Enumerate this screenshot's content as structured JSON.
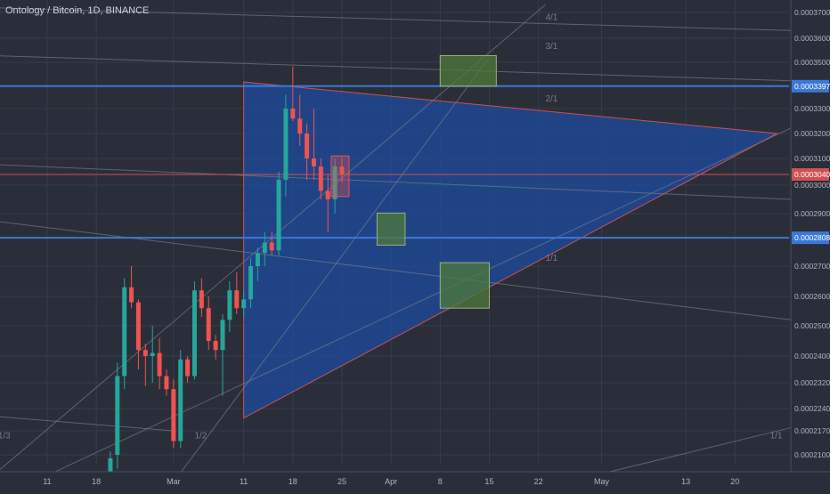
{
  "header": {
    "symbol_title": "Ontology / Bitcoin, 1D, BINANCE"
  },
  "colors": {
    "background": "#2a2e39",
    "grid": "#363c4e",
    "up": "#26a69a",
    "down": "#ef5350",
    "triangle_fill": "#1e4ba0",
    "support_line": "#3a78d8",
    "price_line": "#d05050",
    "fib_line": "#787b86",
    "target_box": "#4f7a3a",
    "axis_text": "#b2b5be"
  },
  "chart_data": {
    "type": "candlestick",
    "title": "Ontology / Bitcoin, 1D, BINANCE",
    "ylim": [
      0.0002055,
      0.0003775
    ],
    "y_ticks": [
      "0.0003700",
      "0.0003600",
      "0.0003500",
      "0.0003300",
      "0.0003200",
      "0.0003100",
      "0.0003000",
      "0.0002900",
      "0.0002700",
      "0.0002600",
      "0.0002500",
      "0.0002400",
      "0.0002320",
      "0.0002240",
      "0.0002170",
      "0.0002100"
    ],
    "x_ticks": [
      "11",
      "18",
      "Mar",
      "11",
      "18",
      "25",
      "Apr",
      "8",
      "15",
      "22",
      "May",
      "13",
      "20"
    ],
    "x_tick_dates": [
      "2018-02-11",
      "2018-02-18",
      "2018-03-01",
      "2018-03-11",
      "2018-03-18",
      "2018-03-25",
      "2018-04-01",
      "2018-04-08",
      "2018-04-15",
      "2018-04-22",
      "2018-05-01",
      "2018-05-13",
      "2018-05-20"
    ],
    "price_labels": [
      {
        "text": "0.0003397",
        "value": 0.0003397,
        "color": "#3a78d8"
      },
      {
        "text": "0.0003040",
        "value": 0.000304,
        "color": "#d05050"
      },
      {
        "text": "0.0002808",
        "value": 0.0002808,
        "color": "#3a78d8"
      }
    ],
    "horizontal_lines": [
      {
        "name": "resistance",
        "value": 0.0003397,
        "color": "#3a78d8"
      },
      {
        "name": "support",
        "value": 0.0002808,
        "color": "#3a78d8"
      },
      {
        "name": "last-price",
        "value": 0.000304,
        "color": "#d05050"
      }
    ],
    "triangle": {
      "vertices": [
        {
          "date": "2018-03-11",
          "price": 0.0003415
        },
        {
          "date": "2018-03-11",
          "price": 0.000221
        },
        {
          "date": "2018-05-26",
          "price": 0.00032
        }
      ]
    },
    "target_boxes": [
      {
        "name": "upper-target",
        "date_from": "2018-04-08",
        "date_to": "2018-04-16",
        "price_from": 0.0003397,
        "price_to": 0.0003528
      },
      {
        "name": "mid-target",
        "date_from": "2018-03-30",
        "date_to": "2018-04-03",
        "price_from": 0.000278,
        "price_to": 0.0002902
      },
      {
        "name": "lower-target",
        "date_from": "2018-04-08",
        "date_to": "2018-04-15",
        "price_from": 0.000256,
        "price_to": 0.0002713
      }
    ],
    "fan_lines": [
      {
        "label": "4/1",
        "from": {
          "date": "2018-03-01",
          "price": 0.000202
        },
        "to": {
          "date": "2018-04-15",
          "price": 0.000352
        }
      },
      {
        "label": "",
        "from": {
          "date": "2018-02-01",
          "price": 0.0002
        },
        "to": {
          "date": "2018-04-23",
          "price": 0.000373
        }
      },
      {
        "label": "1/1",
        "from": {
          "date": "2018-02-01",
          "price": 0.000288
        },
        "to": {
          "date": "2018-05-28",
          "price": 0.000252
        }
      },
      {
        "label": "1/2",
        "from": {
          "date": "2018-02-11",
          "price": 0.000204
        },
        "to": {
          "date": "2018-05-28",
          "price": 0.0003222
        }
      },
      {
        "label": "1/3",
        "from": {
          "date": "2018-02-01",
          "price": 0.000222
        },
        "to": {
          "date": "2018-03-01",
          "price": 0.000217
        }
      },
      {
        "label": "1/1",
        "from": {
          "date": "2018-04-28",
          "price": 0.000203
        },
        "to": {
          "date": "2018-05-28",
          "price": 0.000218
        }
      },
      {
        "label": "",
        "from": {
          "date": "2018-02-01",
          "price": 0.000372
        },
        "to": {
          "date": "2018-05-28",
          "price": 0.000363
        }
      },
      {
        "label": "",
        "from": {
          "date": "2018-02-01",
          "price": 0.000353
        },
        "to": {
          "date": "2018-05-28",
          "price": 0.000342
        }
      },
      {
        "label": "",
        "from": {
          "date": "2018-02-01",
          "price": 0.000308
        },
        "to": {
          "date": "2018-05-28",
          "price": 0.000295
        }
      }
    ],
    "fan_labels": [
      {
        "text": "4/1",
        "date": "2018-04-23",
        "price": 0.000367
      },
      {
        "text": "3/1",
        "date": "2018-04-23",
        "price": 0.0003555
      },
      {
        "text": "2/1",
        "date": "2018-04-23",
        "price": 0.000333
      },
      {
        "text": "1/1",
        "date": "2018-04-23",
        "price": 0.000272
      },
      {
        "text": "1/2",
        "date": "2018-03-04",
        "price": 0.0002148
      },
      {
        "text": "1/3",
        "date": "2018-02-04",
        "price": 0.0002148
      },
      {
        "text": "1/1",
        "date": "2018-05-25",
        "price": 0.0002148
      }
    ],
    "candles": [
      {
        "date": "2018-02-20",
        "open": 0.000205,
        "high": 0.000211,
        "low": 0.000204,
        "close": 0.000209
      },
      {
        "date": "2018-02-21",
        "open": 0.00021,
        "high": 0.000238,
        "low": 0.000206,
        "close": 0.000234
      },
      {
        "date": "2018-02-22",
        "open": 0.000234,
        "high": 0.000266,
        "low": 0.00023,
        "close": 0.000263
      },
      {
        "date": "2018-02-23",
        "open": 0.000263,
        "high": 0.00027,
        "low": 0.000256,
        "close": 0.000258
      },
      {
        "date": "2018-02-24",
        "open": 0.000258,
        "high": 0.000259,
        "low": 0.000236,
        "close": 0.000242
      },
      {
        "date": "2018-02-25",
        "open": 0.000242,
        "high": 0.000244,
        "low": 0.000231,
        "close": 0.00024
      },
      {
        "date": "2018-02-26",
        "open": 0.00024,
        "high": 0.00025,
        "low": 0.000232,
        "close": 0.000241
      },
      {
        "date": "2018-02-27",
        "open": 0.000241,
        "high": 0.000246,
        "low": 0.00023,
        "close": 0.000234
      },
      {
        "date": "2018-02-28",
        "open": 0.000234,
        "high": 0.000236,
        "low": 0.000228,
        "close": 0.00023
      },
      {
        "date": "2018-03-01",
        "open": 0.00023,
        "high": 0.000233,
        "low": 0.000212,
        "close": 0.000214
      },
      {
        "date": "2018-03-02",
        "open": 0.000214,
        "high": 0.000242,
        "low": 0.000212,
        "close": 0.000239
      },
      {
        "date": "2018-03-03",
        "open": 0.000239,
        "high": 0.00024,
        "low": 0.000232,
        "close": 0.000234
      },
      {
        "date": "2018-03-04",
        "open": 0.000234,
        "high": 0.000265,
        "low": 0.000233,
        "close": 0.000262
      },
      {
        "date": "2018-03-05",
        "open": 0.000262,
        "high": 0.000266,
        "low": 0.000253,
        "close": 0.000256
      },
      {
        "date": "2018-03-06",
        "open": 0.000256,
        "high": 0.00026,
        "low": 0.000242,
        "close": 0.000245
      },
      {
        "date": "2018-03-07",
        "open": 0.000245,
        "high": 0.000247,
        "low": 0.000239,
        "close": 0.000242
      },
      {
        "date": "2018-03-08",
        "open": 0.000242,
        "high": 0.000254,
        "low": 0.000228,
        "close": 0.000252
      },
      {
        "date": "2018-03-09",
        "open": 0.000252,
        "high": 0.000265,
        "low": 0.000248,
        "close": 0.000262
      },
      {
        "date": "2018-03-10",
        "open": 0.000262,
        "high": 0.000268,
        "low": 0.000254,
        "close": 0.000256
      },
      {
        "date": "2018-03-11",
        "open": 0.000256,
        "high": 0.000262,
        "low": 0.000253,
        "close": 0.000259
      },
      {
        "date": "2018-03-12",
        "open": 0.000259,
        "high": 0.000273,
        "low": 0.000256,
        "close": 0.00027
      },
      {
        "date": "2018-03-13",
        "open": 0.00027,
        "high": 0.000277,
        "low": 0.000265,
        "close": 0.000275
      },
      {
        "date": "2018-03-14",
        "open": 0.000275,
        "high": 0.000283,
        "low": 0.00027,
        "close": 0.000279
      },
      {
        "date": "2018-03-15",
        "open": 0.000279,
        "high": 0.000283,
        "low": 0.000274,
        "close": 0.000276
      },
      {
        "date": "2018-03-16",
        "open": 0.000276,
        "high": 0.000305,
        "low": 0.000274,
        "close": 0.000302
      },
      {
        "date": "2018-03-17",
        "open": 0.000302,
        "high": 0.000336,
        "low": 0.000296,
        "close": 0.00033
      },
      {
        "date": "2018-03-18",
        "open": 0.00033,
        "high": 0.000348,
        "low": 0.000325,
        "close": 0.000326
      },
      {
        "date": "2018-03-19",
        "open": 0.000326,
        "high": 0.000336,
        "low": 0.000315,
        "close": 0.00032
      },
      {
        "date": "2018-03-20",
        "open": 0.00032,
        "high": 0.000324,
        "low": 0.000302,
        "close": 0.00031
      },
      {
        "date": "2018-03-21",
        "open": 0.00031,
        "high": 0.00033,
        "low": 0.000302,
        "close": 0.000307
      },
      {
        "date": "2018-03-22",
        "open": 0.000307,
        "high": 0.00031,
        "low": 0.000295,
        "close": 0.000298
      },
      {
        "date": "2018-03-23",
        "open": 0.000298,
        "high": 0.000304,
        "low": 0.000283,
        "close": 0.000295
      },
      {
        "date": "2018-03-24",
        "open": 0.000295,
        "high": 0.00031,
        "low": 0.00029,
        "close": 0.000307
      },
      {
        "date": "2018-03-25",
        "open": 0.000307,
        "high": 0.00031,
        "low": 0.000301,
        "close": 0.000304
      }
    ]
  }
}
